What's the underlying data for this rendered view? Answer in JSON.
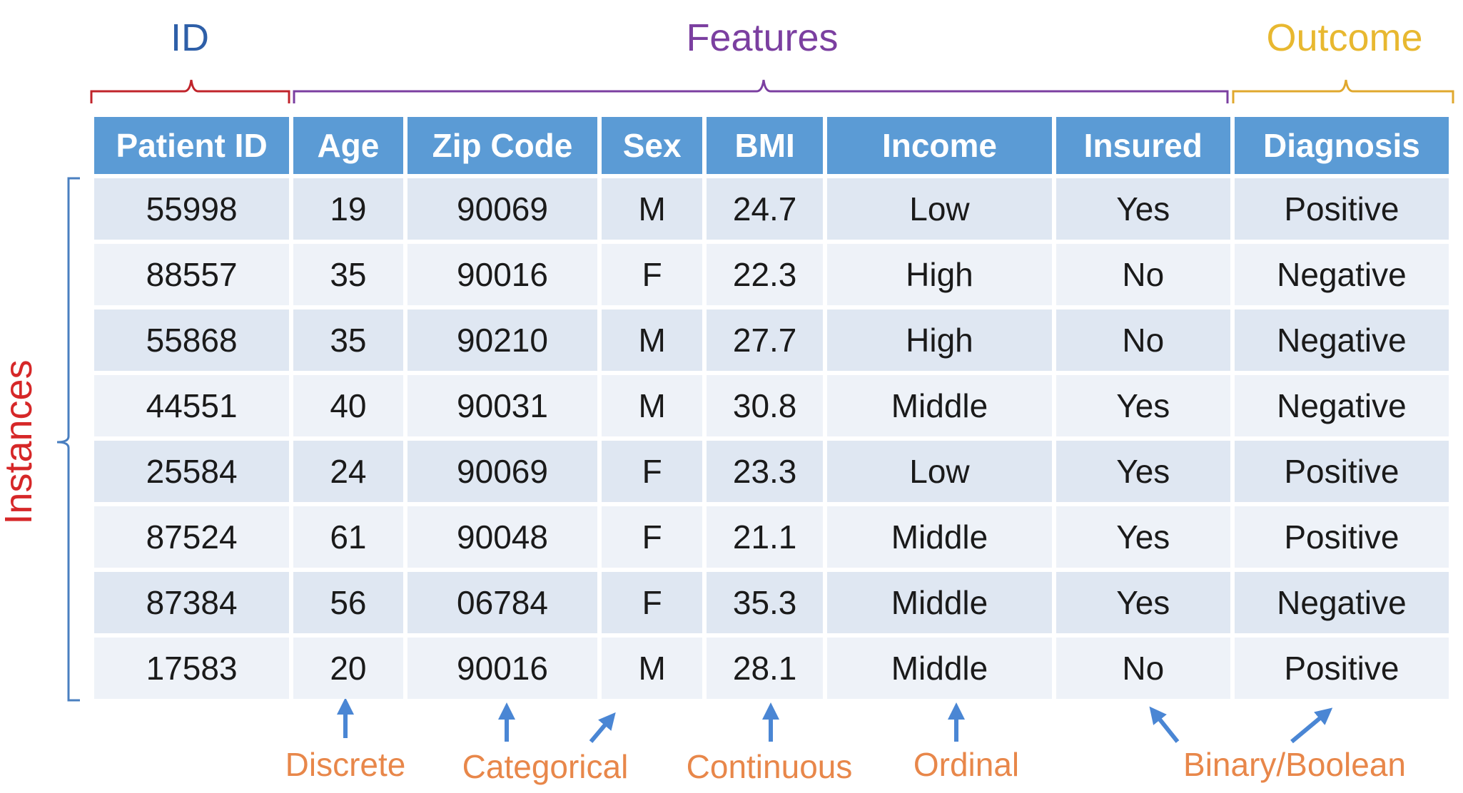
{
  "groups": {
    "id": {
      "label": "ID",
      "color": "#2e5fa8"
    },
    "features": {
      "label": "Features",
      "color": "#7b3fa0"
    },
    "outcome": {
      "label": "Outcome",
      "color": "#e8b830"
    },
    "instances": {
      "label": "Instances",
      "color": "#d62728"
    }
  },
  "table": {
    "headers": [
      "Patient ID",
      "Age",
      "Zip Code",
      "Sex",
      "BMI",
      "Income",
      "Insured",
      "Diagnosis"
    ],
    "rows": [
      [
        "55998",
        "19",
        "90069",
        "M",
        "24.7",
        "Low",
        "Yes",
        "Positive"
      ],
      [
        "88557",
        "35",
        "90016",
        "F",
        "22.3",
        "High",
        "No",
        "Negative"
      ],
      [
        "55868",
        "35",
        "90210",
        "M",
        "27.7",
        "High",
        "No",
        "Negative"
      ],
      [
        "44551",
        "40",
        "90031",
        "M",
        "30.8",
        "Middle",
        "Yes",
        "Negative"
      ],
      [
        "25584",
        "24",
        "90069",
        "F",
        "23.3",
        "Low",
        "Yes",
        "Positive"
      ],
      [
        "87524",
        "61",
        "90048",
        "F",
        "21.1",
        "Middle",
        "Yes",
        "Positive"
      ],
      [
        "87384",
        "56",
        "06784",
        "F",
        "35.3",
        "Middle",
        "Yes",
        "Negative"
      ],
      [
        "17583",
        "20",
        "90016",
        "M",
        "28.1",
        "Middle",
        "No",
        "Positive"
      ]
    ]
  },
  "types": {
    "discrete": "Discrete",
    "categorical": "Categorical",
    "continuous": "Continuous",
    "ordinal": "Ordinal",
    "binary": "Binary/Boolean"
  },
  "colors": {
    "header_bg": "#5b9bd5",
    "row_odd": "#dfe7f2",
    "row_even": "#eef2f8",
    "arrow": "#4a86d4",
    "type_label": "#e8874a",
    "instances_bracket": "#4a7fc0"
  }
}
